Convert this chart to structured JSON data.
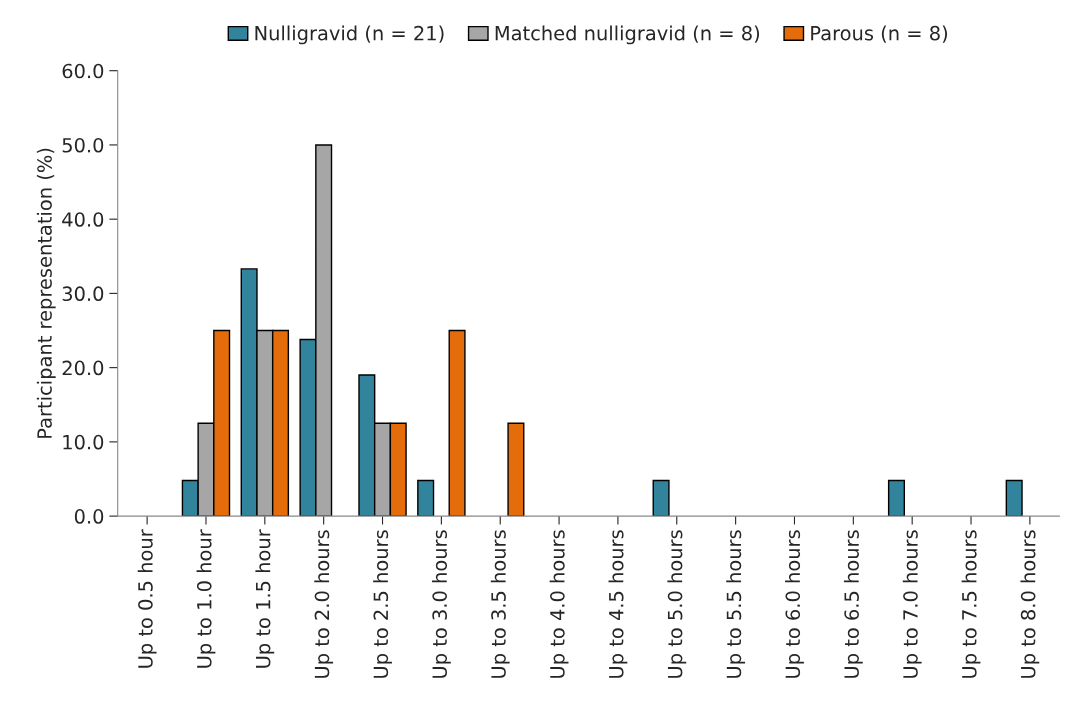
{
  "chart_data": {
    "type": "bar",
    "ylabel": "Participant representation (%)",
    "categories": [
      "Up to 0.5 hour",
      "Up to 1.0 hour",
      "Up to 1.5 hour",
      "Up to 2.0 hours",
      "Up to 2.5 hours",
      "Up to 3.0 hours",
      "Up to 3.5 hours",
      "Up to 4.0 hours",
      "Up to 4.5 hours",
      "Up to 5.0 hours",
      "Up to 5.5 hours",
      "Up to 6.0 hours",
      "Up to 6.5 hours",
      "Up to 7.0 hours",
      "Up to 7.5 hours",
      "Up to 8.0 hours"
    ],
    "series": [
      {
        "name": "Nulligravid (n = 21)",
        "color": "#31849b",
        "values": [
          0,
          4.8,
          33.3,
          23.8,
          19.0,
          4.8,
          0,
          0,
          0,
          4.8,
          0,
          0,
          0,
          4.8,
          0,
          4.8
        ]
      },
      {
        "name": "Matched nulligravid (n = 8)",
        "color": "#a6a6a6",
        "values": [
          0,
          12.5,
          25.0,
          50.0,
          12.5,
          0,
          0,
          0,
          0,
          0,
          0,
          0,
          0,
          0,
          0,
          0
        ]
      },
      {
        "name": "Parous (n = 8)",
        "color": "#e46c0a",
        "values": [
          0,
          25.0,
          25.0,
          0,
          12.5,
          25.0,
          12.5,
          0,
          0,
          0,
          0,
          0,
          0,
          0,
          0,
          0
        ]
      }
    ],
    "ylim": [
      0,
      60
    ],
    "yticks": [
      {
        "value": 0,
        "label": "0.0"
      },
      {
        "value": 10,
        "label": "10.0"
      },
      {
        "value": 20,
        "label": "20.0"
      },
      {
        "value": 30,
        "label": "30.0"
      },
      {
        "value": 40,
        "label": "40.0"
      },
      {
        "value": 50,
        "label": "50.0"
      },
      {
        "value": 60,
        "label": "60.0"
      }
    ],
    "grid": false,
    "legend": "top"
  }
}
